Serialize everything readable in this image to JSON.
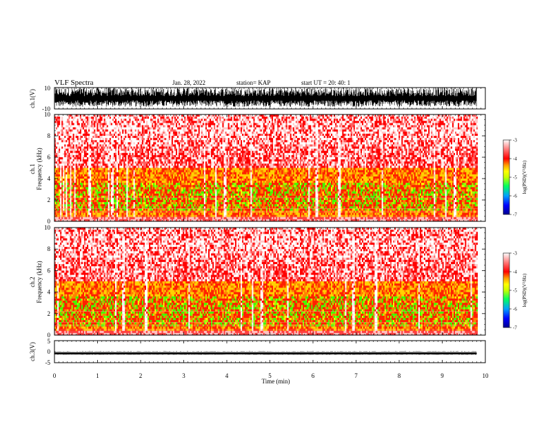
{
  "header": {
    "title": "VLF Spectra",
    "date": "Jan. 28, 2022",
    "station": "station= KAP",
    "start": "start  UT  =   20: 40: 1"
  },
  "colors": {
    "background": "#ffffff",
    "axes": "#000000",
    "spectrogram_palette": [
      "#000090",
      "#0000ff",
      "#00a0ff",
      "#00ff60",
      "#40ff00",
      "#c8ff00",
      "#ffff00",
      "#ffb000",
      "#ff6000",
      "#ff0000",
      "#ff6060",
      "#ffc8c8",
      "#ffffff"
    ]
  },
  "chart_data": [
    {
      "panel": "ch1-waveform",
      "type": "line",
      "ylabel": "ch.1(V)",
      "ylim": [
        -10,
        10
      ],
      "yticks": [
        "10",
        "-10"
      ],
      "description_values": "dense noise filling roughly -8 to +10 V across 0–9.8 min",
      "x_extent_min": [
        0,
        9.8
      ]
    },
    {
      "panel": "ch1-spectrogram",
      "type": "heatmap",
      "ylabel": "ch.1\nFrequency (kHz)",
      "ylim": [
        0,
        10
      ],
      "yticks": [
        "0",
        "2",
        "4",
        "6",
        "8",
        "10"
      ],
      "colorbar": {
        "label": "log(PSD)(V²/Hz)",
        "range": [
          -7,
          -3
        ],
        "ticks": [
          "-3",
          "-4",
          "-5",
          "-6",
          "-7"
        ]
      },
      "green_band_khz": [
        1,
        3.5
      ],
      "yellow_band_khz": [
        0.5,
        5
      ]
    },
    {
      "panel": "ch2-spectrogram",
      "type": "heatmap",
      "ylabel": "ch.2\nFrequency (kHz)",
      "ylim": [
        0,
        10
      ],
      "yticks": [
        "0",
        "2",
        "4",
        "6",
        "8",
        "10"
      ],
      "colorbar": {
        "label": "log(PSD)(V²/Hz)",
        "range": [
          -7,
          -3
        ],
        "ticks": [
          "-3",
          "-4",
          "-5",
          "-6",
          "-7"
        ]
      },
      "green_band_khz": [
        0.8,
        3.5
      ],
      "yellow_band_khz": [
        0.5,
        5
      ]
    },
    {
      "panel": "ch3-waveform",
      "type": "line",
      "ylabel": "ch.3(V)",
      "ylim": [
        -5,
        5
      ],
      "yticks": [
        "5",
        "0",
        "-5"
      ],
      "level_v": [
        -1.2,
        -0.4
      ],
      "x_extent_min": [
        0,
        9.8
      ]
    }
  ],
  "xaxis": {
    "label": "Time (min)",
    "ticks": [
      "0",
      "1",
      "2",
      "3",
      "4",
      "5",
      "6",
      "7",
      "8",
      "9",
      "10"
    ],
    "xlim": [
      0,
      10
    ]
  }
}
